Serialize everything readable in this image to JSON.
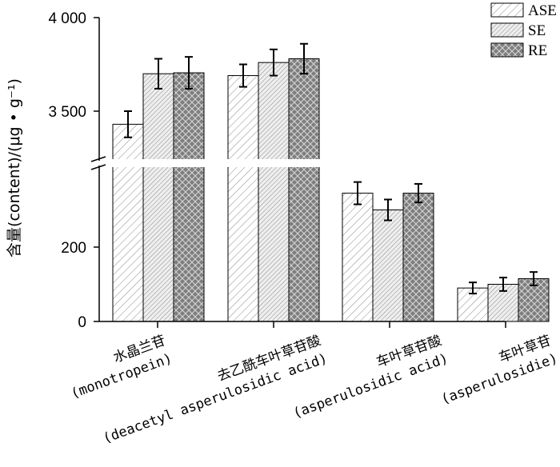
{
  "chart_data": {
    "type": "bar",
    "ylabel": "含量(content)/(μg • g⁻¹)",
    "y_break": true,
    "lower_segment": {
      "range": [
        0,
        400
      ],
      "ticks": [
        0,
        200
      ]
    },
    "upper_segment": {
      "range": [
        3300,
        4000
      ],
      "ticks": [
        3500,
        4000
      ]
    },
    "y_tick_labels": [
      "0",
      "200",
      "3 500",
      "4 000"
    ],
    "categories": [
      {
        "zh": "水晶兰苷",
        "en": "(monotropein)"
      },
      {
        "zh": "去乙酰车叶草苷酸",
        "en": "(deacetyl asperulosidic acid)"
      },
      {
        "zh": "车叶草苷酸",
        "en": "(asperulosidic acid)"
      },
      {
        "zh": "车叶草苷",
        "en": "(asperulosidie)"
      }
    ],
    "series": [
      {
        "name": "ASE",
        "values": [
          3430,
          3690,
          345,
          90
        ],
        "errors": [
          70,
          60,
          30,
          15
        ],
        "color": "#ffffff"
      },
      {
        "name": "SE",
        "values": [
          3700,
          3760,
          300,
          100
        ],
        "errors": [
          80,
          70,
          28,
          18
        ],
        "color": "#e0e0e0"
      },
      {
        "name": "RE",
        "values": [
          3705,
          3780,
          345,
          115
        ],
        "errors": [
          85,
          80,
          25,
          18
        ],
        "color": "#7a7a7a"
      }
    ]
  }
}
